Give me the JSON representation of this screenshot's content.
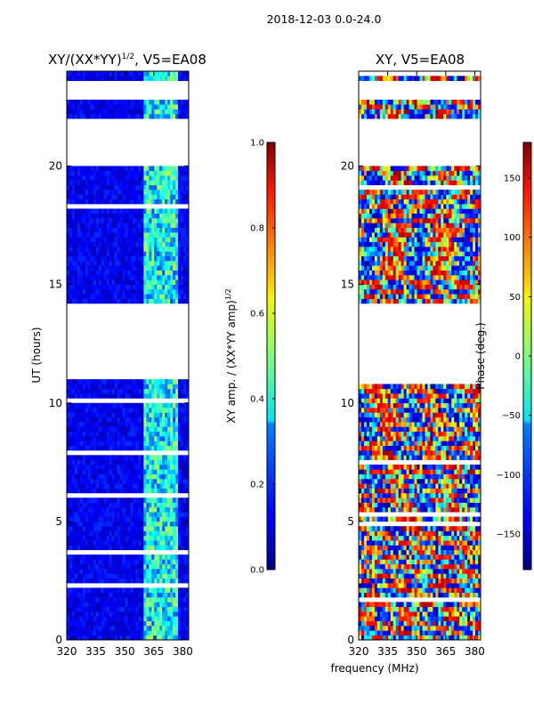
{
  "suptitle": "2018-12-03 0.0-24.0",
  "x_label": "frequency (MHz)",
  "chart_data": [
    {
      "type": "heatmap",
      "title": "XY/(XX*YY)",
      "title_sup": "1/2",
      "title_suffix": ", V5=EA08",
      "xlabel": "frequency (MHz)",
      "ylabel": "UT (hours)",
      "xlim": [
        320,
        383
      ],
      "ylim": [
        0,
        24
      ],
      "xticks": [
        "320",
        "335",
        "350",
        "365",
        "380"
      ],
      "xtick_values": [
        320,
        335,
        350,
        365,
        380
      ],
      "yticks": [
        "0",
        "5",
        "10",
        "15",
        "20"
      ],
      "ytick_values": [
        0,
        5,
        10,
        15,
        20
      ],
      "colormap": "jet",
      "colorbar": {
        "label": "XY amp. / (XX*YY amp)",
        "label_sup": "1/2",
        "range": [
          0.0,
          1.0
        ],
        "ticks": [
          "0.0",
          "0.2",
          "0.4",
          "0.6",
          "0.8",
          "1.0"
        ],
        "tick_values": [
          0.0,
          0.2,
          0.4,
          0.6,
          0.8,
          1.0
        ]
      },
      "data_gaps_ut": [
        [
          11.0,
          14.2
        ],
        [
          20.0,
          22.0
        ],
        [
          22.8,
          23.5
        ]
      ],
      "bright_band_mhz": [
        360,
        378
      ]
    },
    {
      "type": "heatmap",
      "title": "XY, V5=EA08",
      "xlabel": "frequency (MHz)",
      "ylabel": "",
      "xlim": [
        320,
        383
      ],
      "ylim": [
        0,
        24
      ],
      "xticks": [
        "320",
        "335",
        "350",
        "365",
        "380"
      ],
      "xtick_values": [
        320,
        335,
        350,
        365,
        380
      ],
      "yticks": [
        "0",
        "5",
        "10",
        "15",
        "20"
      ],
      "ytick_values": [
        0,
        5,
        10,
        15,
        20
      ],
      "colormap": "jet",
      "colorbar": {
        "label": "Phase (deg.)",
        "range": [
          -180,
          180
        ],
        "ticks": [
          "−150",
          "−100",
          "−50",
          "0",
          "50",
          "100",
          "150"
        ],
        "tick_values": [
          -150,
          -100,
          -50,
          0,
          50,
          100,
          150
        ]
      },
      "data_gaps_ut": [
        [
          11.0,
          14.2
        ],
        [
          20.0,
          22.0
        ],
        [
          22.8,
          23.5
        ]
      ]
    }
  ]
}
